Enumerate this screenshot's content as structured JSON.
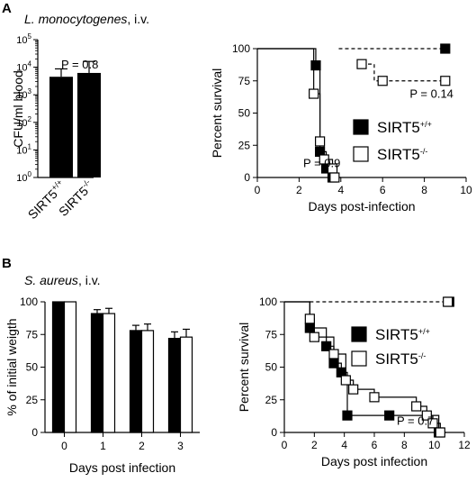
{
  "panels": {
    "A": {
      "letter": "A",
      "title_italic": "L. monocytogenes",
      "title_suffix": ", i.v."
    },
    "B": {
      "letter": "B",
      "title_italic": "S. aureus",
      "title_suffix": ", i.v."
    }
  },
  "chart_data": [
    {
      "id": "A-left",
      "type": "bar",
      "ylabel": "CFU/ml blood",
      "yscale": "log",
      "ylim": [
        1,
        100000
      ],
      "ytick_exponents": [
        "0",
        "1",
        "2",
        "3",
        "4",
        "5"
      ],
      "categories": [
        {
          "base": "SIRT5",
          "sup": "+/+"
        },
        {
          "base": "SIRT5",
          "sup": "-/-"
        }
      ],
      "values": [
        4500,
        6200
      ],
      "error": [
        4200,
        10000
      ],
      "annotation": "P = 0.8",
      "bar_color": "#000000"
    },
    {
      "id": "A-right",
      "type": "line",
      "xlabel": "Days post-infection",
      "ylabel": "Percent survival",
      "xlim": [
        0,
        10
      ],
      "ylim": [
        0,
        100
      ],
      "xticks": [
        "0",
        "2",
        "4",
        "6",
        "8",
        "10"
      ],
      "yticks": [
        "0",
        "25",
        "50",
        "75",
        "100"
      ],
      "legend_position": "right",
      "legend": [
        {
          "base": "SIRT5",
          "sup": "+/+",
          "fill": "#000000"
        },
        {
          "base": "SIRT5",
          "sup": "-/-",
          "fill": "#ffffff"
        }
      ],
      "series": [
        {
          "fill": "#000000",
          "dash": false,
          "steps": [
            [
              0,
              100
            ],
            [
              2.8,
              100
            ],
            [
              2.8,
              87
            ],
            [
              3,
              87
            ],
            [
              3,
              20
            ],
            [
              3.3,
              20
            ],
            [
              3.3,
              7
            ],
            [
              3.6,
              7
            ],
            [
              3.6,
              0
            ],
            [
              4,
              0
            ]
          ],
          "points": [
            [
              2.8,
              87
            ],
            [
              3,
              20
            ],
            [
              3.3,
              7
            ],
            [
              3.6,
              0
            ]
          ]
        },
        {
          "fill": "#ffffff",
          "dash": false,
          "steps": [
            [
              0,
              100
            ],
            [
              2.7,
              100
            ],
            [
              2.7,
              65
            ],
            [
              3,
              65
            ],
            [
              3,
              28
            ],
            [
              3.2,
              28
            ],
            [
              3.2,
              14
            ],
            [
              3.6,
              14
            ],
            [
              3.6,
              0
            ],
            [
              3.9,
              0
            ]
          ],
          "points": [
            [
              2.7,
              65
            ],
            [
              3,
              28
            ],
            [
              3.2,
              14
            ],
            [
              3.6,
              7
            ],
            [
              3.7,
              0
            ]
          ]
        },
        {
          "fill": "#000000",
          "dash": true,
          "steps": [
            [
              3.9,
              100
            ],
            [
              9,
              100
            ]
          ],
          "points": [
            [
              9,
              100
            ]
          ]
        },
        {
          "fill": "#ffffff",
          "dash": true,
          "steps": [
            [
              5,
              88
            ],
            [
              5.6,
              88
            ],
            [
              5.6,
              75
            ],
            [
              9,
              75
            ]
          ],
          "points": [
            [
              5,
              88
            ],
            [
              6,
              75
            ],
            [
              9,
              75
            ]
          ]
        }
      ],
      "annotations": [
        {
          "text": "P = 0.9",
          "x": 2.2,
          "y": 8
        },
        {
          "text": "P = 0.14",
          "x": 7.3,
          "y": 62
        }
      ]
    },
    {
      "id": "B-left",
      "type": "bar",
      "xlabel": "Days post infection",
      "ylabel": "% of initial weigth",
      "ylim": [
        0,
        100
      ],
      "yticks": [
        "0",
        "25",
        "50",
        "75",
        "100"
      ],
      "categories": [
        "0",
        "1",
        "2",
        "3"
      ],
      "series": [
        {
          "fill": "#000000",
          "values": [
            100,
            91,
            78,
            72
          ],
          "error": [
            0,
            3,
            4,
            5
          ]
        },
        {
          "fill": "#ffffff",
          "values": [
            100,
            91,
            78,
            73
          ],
          "error": [
            0,
            4,
            5,
            6
          ]
        }
      ]
    },
    {
      "id": "B-right",
      "type": "line",
      "xlabel": "Days post infection",
      "ylabel": "Percent survival",
      "xlim": [
        0,
        12
      ],
      "ylim": [
        0,
        100
      ],
      "xticks": [
        "0",
        "2",
        "4",
        "6",
        "8",
        "10",
        "12"
      ],
      "yticks": [
        "0",
        "25",
        "50",
        "75",
        "100"
      ],
      "legend_position": "right",
      "legend": [
        {
          "base": "SIRT5",
          "sup": "+/+",
          "fill": "#000000"
        },
        {
          "base": "SIRT5",
          "sup": "-/-",
          "fill": "#ffffff"
        }
      ],
      "series": [
        {
          "fill": "#000000",
          "dash": false,
          "steps": [
            [
              0,
              100
            ],
            [
              1.7,
              100
            ],
            [
              1.7,
              80
            ],
            [
              2.8,
              80
            ],
            [
              2.8,
              66
            ],
            [
              3.3,
              66
            ],
            [
              3.3,
              53
            ],
            [
              3.8,
              53
            ],
            [
              3.8,
              46
            ],
            [
              4.2,
              46
            ],
            [
              4.2,
              13
            ],
            [
              7,
              13
            ],
            [
              7,
              13
            ],
            [
              10.3,
              13
            ],
            [
              10.3,
              0
            ],
            [
              10.6,
              0
            ]
          ],
          "points": [
            [
              1.7,
              80
            ],
            [
              2.8,
              66
            ],
            [
              3.3,
              53
            ],
            [
              3.8,
              46
            ],
            [
              4.2,
              13
            ],
            [
              7,
              13
            ],
            [
              10.3,
              0
            ]
          ]
        },
        {
          "fill": "#ffffff",
          "dash": false,
          "steps": [
            [
              0,
              100
            ],
            [
              1.7,
              100
            ],
            [
              1.7,
              87
            ],
            [
              2,
              87
            ],
            [
              2,
              73
            ],
            [
              3.3,
              73
            ],
            [
              3.3,
              60
            ],
            [
              4.1,
              60
            ],
            [
              4.1,
              40
            ],
            [
              4.6,
              40
            ],
            [
              4.6,
              33
            ],
            [
              6,
              33
            ],
            [
              6,
              27
            ],
            [
              8.8,
              27
            ],
            [
              8.8,
              20
            ],
            [
              9.5,
              20
            ],
            [
              9.5,
              13
            ],
            [
              9.9,
              13
            ],
            [
              9.9,
              7
            ],
            [
              10.4,
              7
            ],
            [
              10.4,
              0
            ],
            [
              10.8,
              0
            ]
          ],
          "points": [
            [
              1.7,
              87
            ],
            [
              2,
              73
            ],
            [
              3.3,
              60
            ],
            [
              4.1,
              40
            ],
            [
              4.6,
              33
            ],
            [
              6,
              27
            ],
            [
              8.8,
              20
            ],
            [
              9.5,
              13
            ],
            [
              9.9,
              7
            ],
            [
              10.4,
              0
            ]
          ]
        },
        {
          "fill": "#000000",
          "dash": true,
          "steps": [
            [
              10.6,
              100
            ],
            [
              11,
              100
            ]
          ],
          "points": [
            [
              11,
              100
            ]
          ]
        },
        {
          "fill": "#ffffff",
          "dash": true,
          "steps": [
            [
              1.7,
              100
            ],
            [
              11,
              100
            ]
          ],
          "points": [
            [
              10.9,
              100
            ]
          ]
        }
      ],
      "annotations": [
        {
          "text": "P = 0.7",
          "x": 7.5,
          "y": 6
        }
      ]
    }
  ]
}
